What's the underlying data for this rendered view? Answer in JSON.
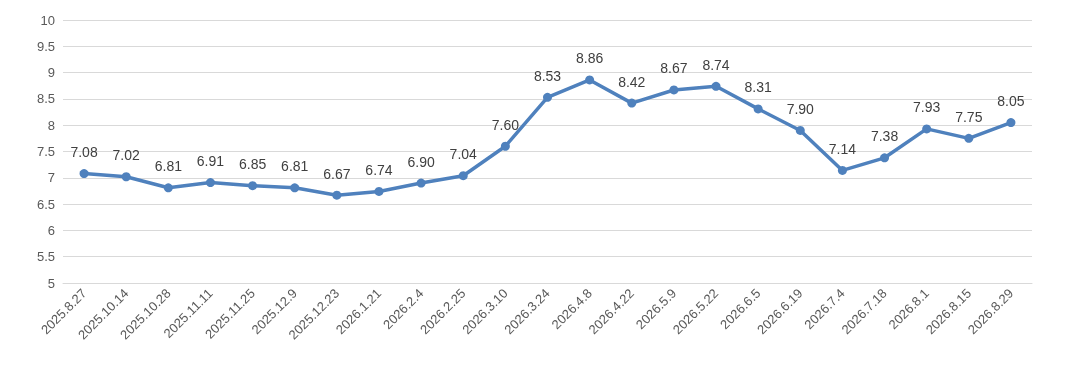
{
  "chart_data": {
    "type": "line",
    "categories": [
      "2025.8.27",
      "2025.10.14",
      "2025.10.28",
      "2025.11.11",
      "2025.11.25",
      "2025.12.9",
      "2025.12.23",
      "2026.1.21",
      "2026.2.4",
      "2026.2.25",
      "2026.3.10",
      "2026.3.24",
      "2026.4.8",
      "2026.4.22",
      "2026.5.9",
      "2026.5.22",
      "2026.6.5",
      "2026.6.19",
      "2026.7.4",
      "2026.7.18",
      "2026.8.1",
      "2026.8.15",
      "2026.8.29"
    ],
    "series": [
      {
        "color": "#4f81bd",
        "values": [
          7.08,
          7.02,
          6.81,
          6.91,
          6.85,
          6.81,
          6.67,
          6.74,
          6.9,
          7.04,
          7.6,
          8.53,
          8.86,
          8.42,
          8.67,
          8.74,
          8.31,
          7.9,
          7.14,
          7.38,
          7.93,
          7.75,
          8.05
        ],
        "value_labels": [
          "7.08",
          "7.02",
          "6.81",
          "6.91",
          "6.85",
          "6.81",
          "6.67",
          "6.74",
          "6.90",
          "7.04",
          "7.60",
          "8.53",
          "8.86",
          "8.42",
          "8.67",
          "8.74",
          "8.31",
          "7.90",
          "7.14",
          "7.38",
          "7.93",
          "7.75",
          "8.05"
        ]
      }
    ],
    "ylim": [
      5,
      10
    ],
    "yticks": [
      5,
      5.5,
      6,
      6.5,
      7,
      7.5,
      8,
      8.5,
      9,
      9.5,
      10
    ],
    "grid": "y",
    "marker": "circle",
    "line_style": "solid"
  }
}
